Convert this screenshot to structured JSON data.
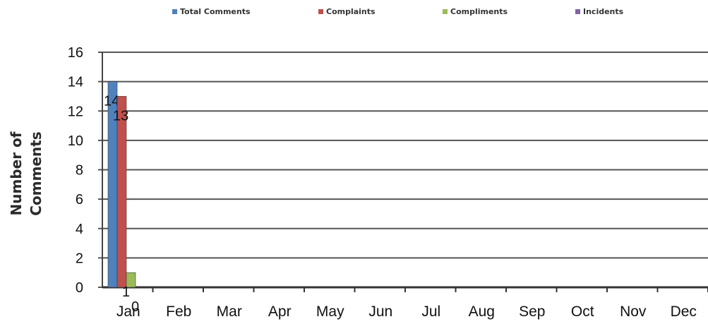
{
  "chart_data": {
    "type": "bar",
    "title": "",
    "xlabel": "",
    "ylabel": "Number of Comments",
    "categories": [
      "Jan",
      "Feb",
      "Mar",
      "Apr",
      "May",
      "Jun",
      "Jul",
      "Aug",
      "Sep",
      "Oct",
      "Nov",
      "Dec"
    ],
    "ylim": [
      0,
      16
    ],
    "yticks": [
      0,
      2,
      4,
      6,
      8,
      10,
      12,
      14,
      16
    ],
    "grid": true,
    "legend_position": "top",
    "series": [
      {
        "name": "Total Comments",
        "color": "#4f81bd",
        "values": [
          14,
          0,
          0,
          0,
          0,
          0,
          0,
          0,
          0,
          0,
          0,
          0
        ],
        "labels": [
          "14",
          "",
          "",
          "",
          "",
          "",
          "",
          "",
          "",
          "",
          "",
          ""
        ]
      },
      {
        "name": "Complaints",
        "color": "#c0504d",
        "values": [
          13,
          0,
          0,
          0,
          0,
          0,
          0,
          0,
          0,
          0,
          0,
          0
        ],
        "labels": [
          "13",
          "",
          "",
          "",
          "",
          "",
          "",
          "",
          "",
          "",
          "",
          ""
        ]
      },
      {
        "name": "Compliments",
        "color": "#9bbb59",
        "values": [
          1,
          0,
          0,
          0,
          0,
          0,
          0,
          0,
          0,
          0,
          0,
          0
        ],
        "labels": [
          "1",
          "",
          "",
          "",
          "",
          "",
          "",
          "",
          "",
          "",
          "",
          ""
        ]
      },
      {
        "name": "Incidents",
        "color": "#8064a2",
        "values": [
          0,
          0,
          0,
          0,
          0,
          0,
          0,
          0,
          0,
          0,
          0,
          0
        ],
        "labels": [
          "0",
          "",
          "",
          "",
          "",
          "",
          "",
          "",
          "",
          "",
          "",
          ""
        ]
      }
    ]
  }
}
